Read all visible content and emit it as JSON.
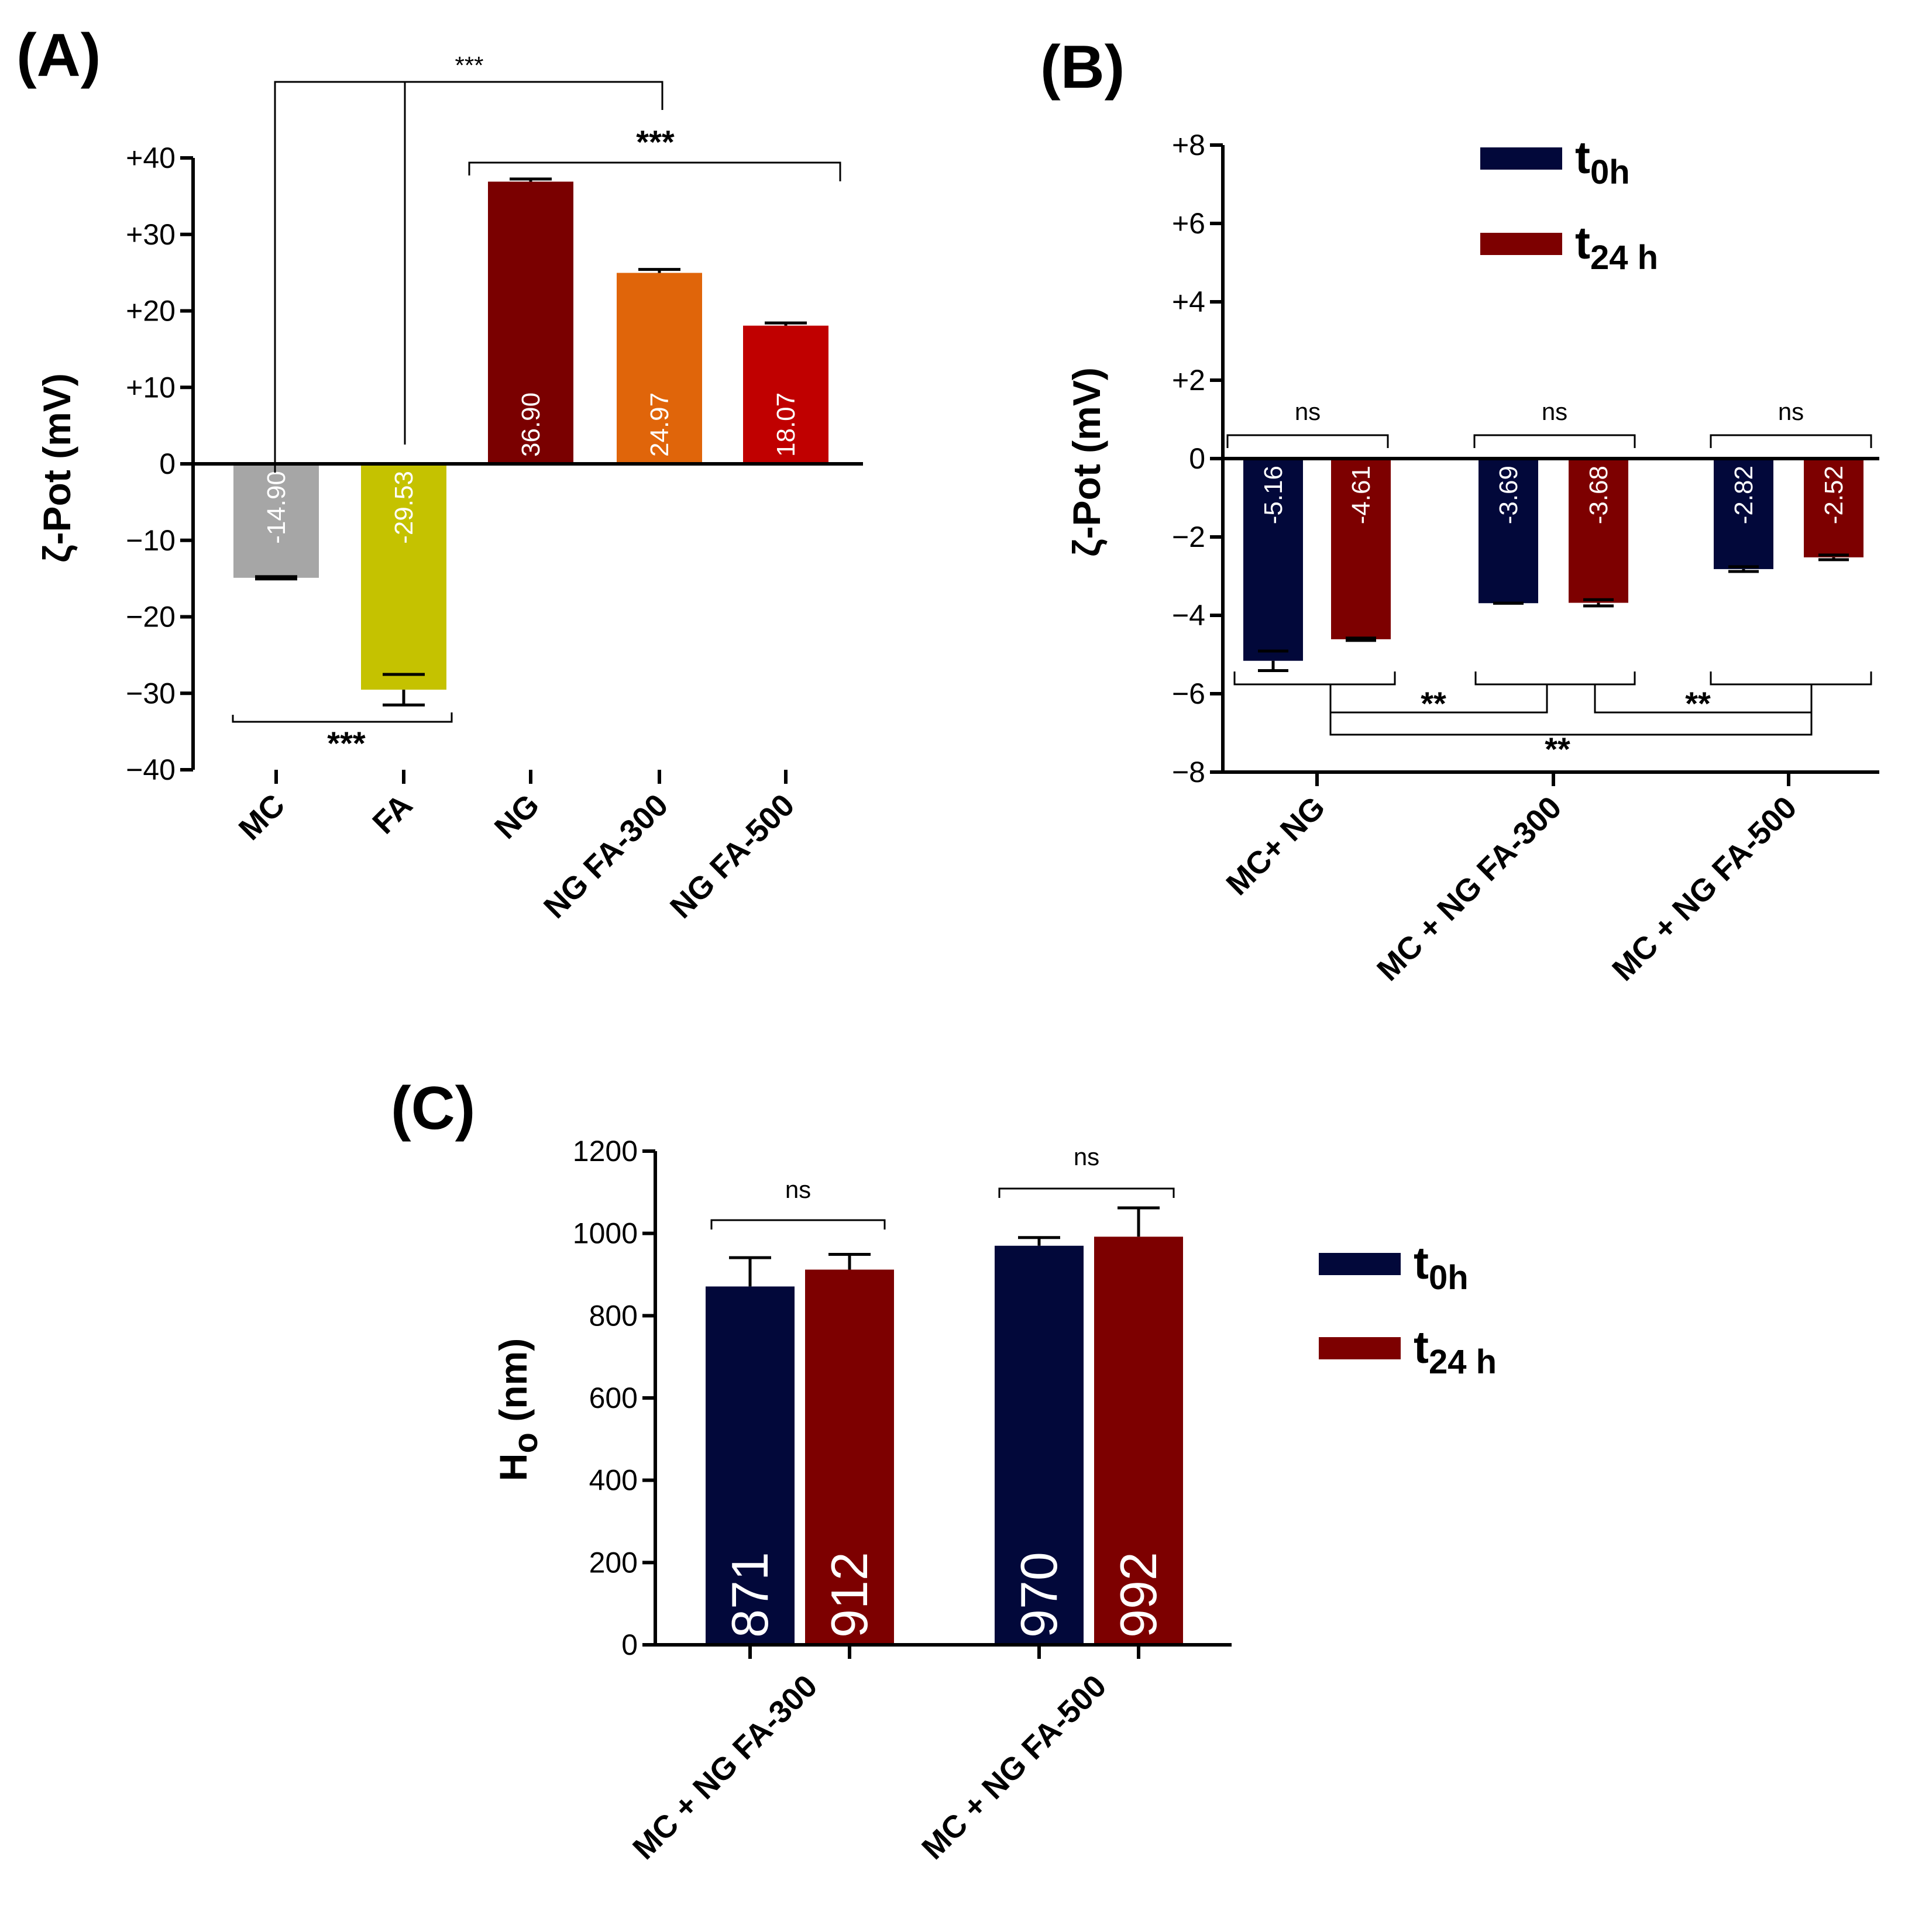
{
  "figure": {
    "colors": {
      "t0h": "#02083a",
      "t24h": "#7d0000"
    }
  },
  "chart_data": [
    {
      "id": "A",
      "panel_label": "(A)",
      "type": "bar",
      "ylabel": "ζ-Pot (mV)",
      "ylim": [
        -40,
        40
      ],
      "yticks": [
        -40,
        -30,
        -20,
        -10,
        0,
        10,
        20,
        30,
        40
      ],
      "ytick_labels": [
        "−40",
        "−30",
        "−20",
        "−10",
        "0",
        "+10",
        "+20",
        "+30",
        "+40"
      ],
      "categories": [
        "MC",
        "FA",
        "NG",
        "NG FA-300",
        "NG FA-500"
      ],
      "values": [
        -14.9,
        -29.53,
        36.9,
        24.97,
        18.07
      ],
      "value_labels": [
        "-14.90",
        "-29.53",
        "36.90",
        "24.97",
        "18.07"
      ],
      "errors": [
        0.15,
        2.0,
        0.35,
        0.45,
        0.35
      ],
      "bar_colors": [
        "#a6a6a6",
        "#c5c200",
        "#7a0000",
        "#e0650a",
        "#c00000"
      ],
      "significance": [
        "***",
        "***",
        "***"
      ]
    },
    {
      "id": "B",
      "panel_label": "(B)",
      "type": "bar",
      "ylabel": "ζ-Pot (mV)",
      "ylim": [
        -8,
        8
      ],
      "yticks": [
        -8,
        -6,
        -4,
        -2,
        0,
        2,
        4,
        6,
        8
      ],
      "ytick_labels": [
        "−8",
        "−6",
        "−4",
        "−2",
        "0",
        "+2",
        "+4",
        "+6",
        "+8"
      ],
      "categories": [
        "MC+ NG",
        "MC + NG FA-300",
        "MC + NG FA-500"
      ],
      "series": [
        {
          "name": "t0h",
          "legend_main": "t",
          "legend_sub": "0h",
          "values": [
            -5.16,
            -3.69,
            -2.82
          ],
          "value_labels": [
            "-5.16",
            "-3.69",
            "-2.82"
          ],
          "errors": [
            0.25,
            0.0,
            0.06
          ]
        },
        {
          "name": "t24 h",
          "legend_main": "t",
          "legend_sub": "24 h",
          "values": [
            -4.61,
            -3.68,
            -2.52
          ],
          "value_labels": [
            "-4.61",
            "-3.68",
            "-2.52"
          ],
          "errors": [
            0.03,
            0.08,
            0.06
          ]
        }
      ],
      "significance": {
        "within": [
          "ns",
          "ns",
          "ns"
        ],
        "between": [
          "**",
          "**",
          "**"
        ]
      }
    },
    {
      "id": "C",
      "panel_label": "(C)",
      "type": "bar",
      "ylabel": "H",
      "ylabel_sub": "o",
      "ylabel_unit": " (nm)",
      "ylim": [
        0,
        1200
      ],
      "yticks": [
        0,
        200,
        400,
        600,
        800,
        1000,
        1200
      ],
      "ytick_labels": [
        "0",
        "200",
        "400",
        "600",
        "800",
        "1000",
        "1200"
      ],
      "categories": [
        "MC + NG FA-300",
        "MC + NG FA-500"
      ],
      "series": [
        {
          "name": "t0h",
          "legend_main": "t",
          "legend_sub": "0h",
          "values": [
            871,
            970
          ],
          "value_labels": [
            "871",
            "970"
          ],
          "errors": [
            70,
            20
          ]
        },
        {
          "name": "t24 h",
          "legend_main": "t",
          "legend_sub": "24 h",
          "values": [
            912,
            992
          ],
          "value_labels": [
            "912",
            "992"
          ],
          "errors": [
            37,
            70
          ]
        }
      ],
      "significance": [
        "ns",
        "ns"
      ]
    }
  ]
}
